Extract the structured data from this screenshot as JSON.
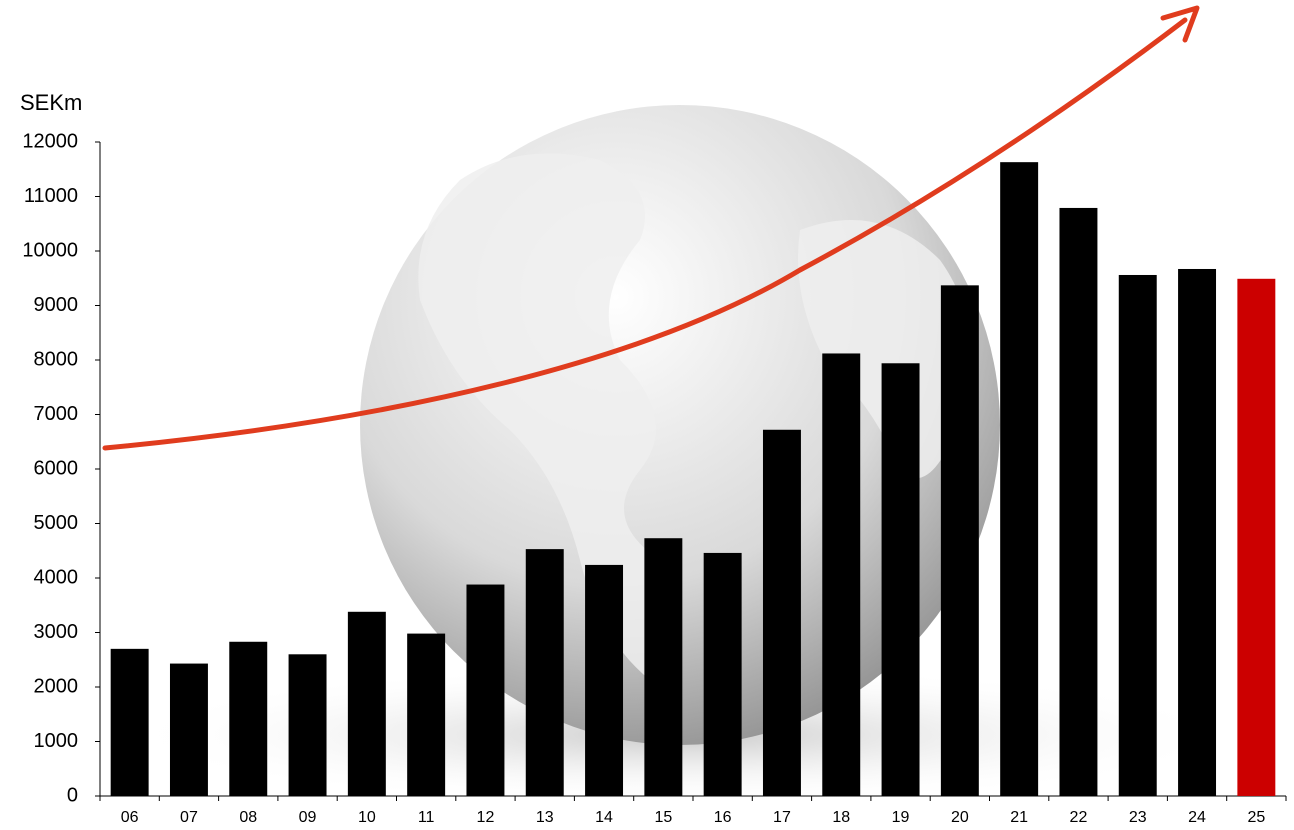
{
  "chart_data": {
    "type": "bar",
    "y_label": "SEKm",
    "categories": [
      "06",
      "07",
      "08",
      "09",
      "10",
      "11",
      "12",
      "13",
      "14",
      "15",
      "16",
      "17",
      "18",
      "19",
      "20",
      "21",
      "22",
      "23",
      "24",
      "25"
    ],
    "values": [
      2700,
      2430,
      2830,
      2600,
      3380,
      2980,
      3880,
      4530,
      4240,
      4730,
      4460,
      6720,
      8120,
      7940,
      9370,
      11630,
      10790,
      9560,
      9670,
      9490
    ],
    "colors": [
      "#000000",
      "#000000",
      "#000000",
      "#000000",
      "#000000",
      "#000000",
      "#000000",
      "#000000",
      "#000000",
      "#000000",
      "#000000",
      "#000000",
      "#000000",
      "#000000",
      "#000000",
      "#000000",
      "#000000",
      "#000000",
      "#000000",
      "#cc0000"
    ],
    "ylim": [
      0,
      12000
    ],
    "yticks": [
      0,
      1000,
      2000,
      3000,
      4000,
      5000,
      6000,
      7000,
      8000,
      9000,
      10000,
      11000,
      12000
    ],
    "grid": false
  }
}
